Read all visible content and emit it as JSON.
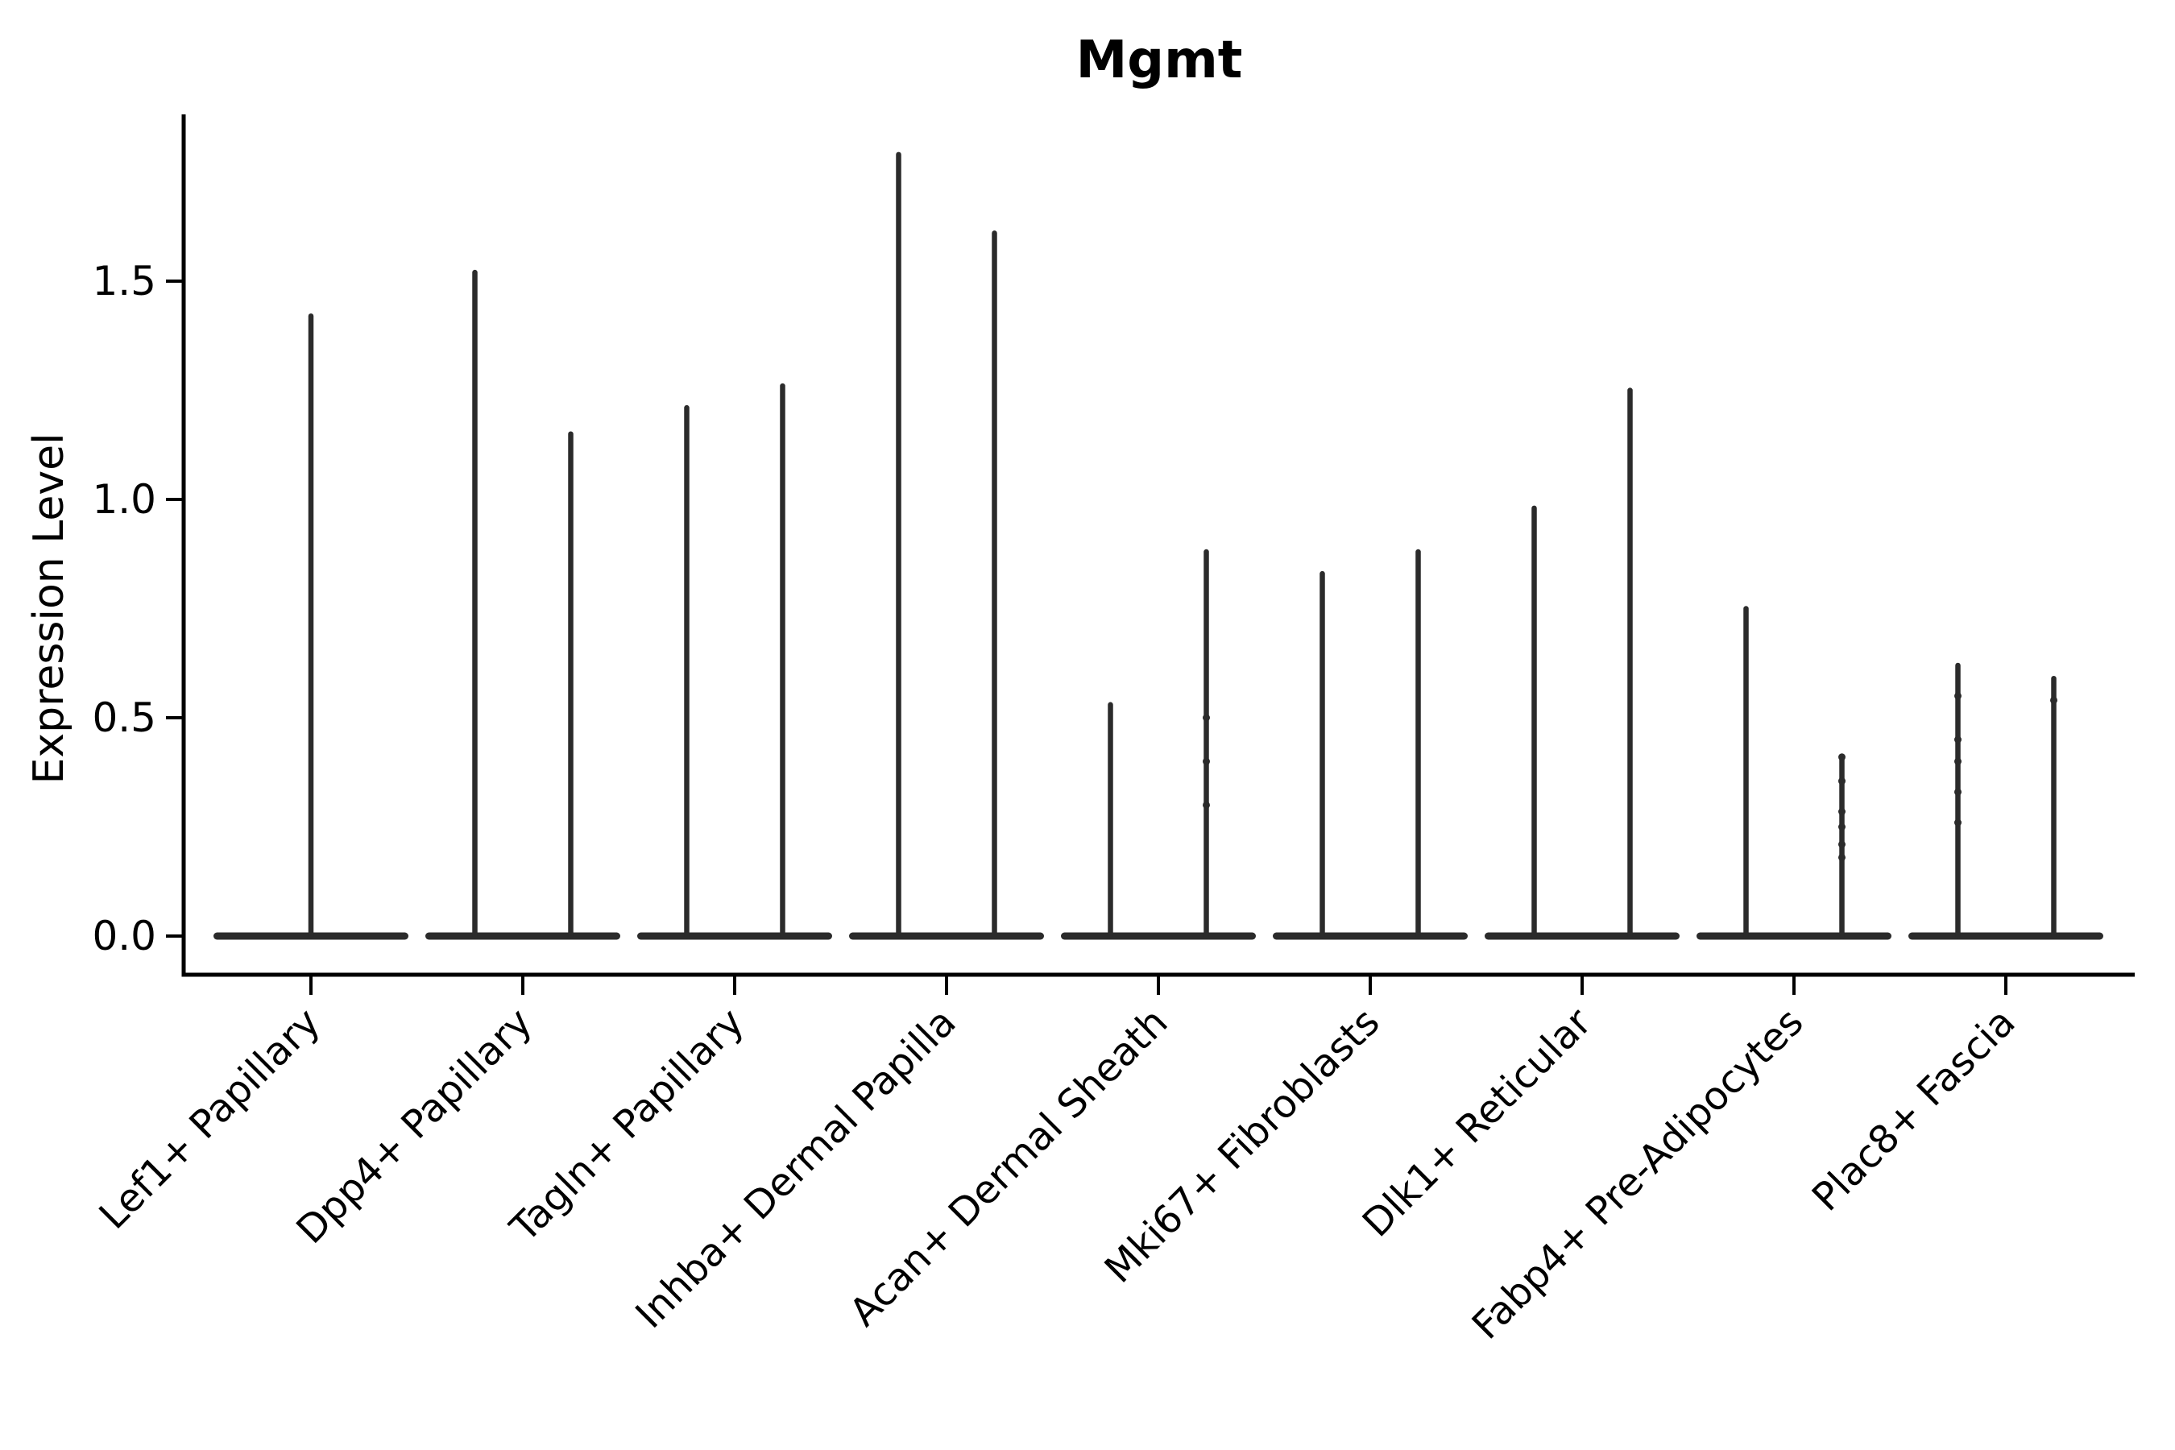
{
  "chart_data": {
    "type": "violin",
    "title": "Mgmt",
    "xlabel": "",
    "ylabel": "Expression Level",
    "ylim": [
      0,
      1.88
    ],
    "yticks": [
      0.0,
      0.5,
      1.0,
      1.5
    ],
    "ytick_labels": [
      "0.0",
      "0.5",
      "1.0",
      "1.5"
    ],
    "grid": false,
    "legend": "none",
    "categories": [
      "Lef1+ Papillary",
      "Dpp4+ Papillary",
      "Tagln+ Papillary",
      "Inhba+ Dermal Papilla",
      "Acan+ Dermal Sheath",
      "Mki67+ Fibroblasts",
      "Dlk1+ Reticular",
      "Fabp4+ Pre-Adipocytes",
      "Plac8+ Fascia"
    ],
    "violins": [
      {
        "category": "Lef1+ Papillary",
        "split": false,
        "max_values": [
          1.42
        ],
        "dots": [
          []
        ]
      },
      {
        "category": "Dpp4+ Papillary",
        "split": true,
        "max_values": [
          1.52,
          1.15
        ],
        "dots": [
          [],
          []
        ]
      },
      {
        "category": "Tagln+ Papillary",
        "split": true,
        "max_values": [
          1.21,
          1.26
        ],
        "dots": [
          [],
          []
        ]
      },
      {
        "category": "Inhba+ Dermal Papilla",
        "split": true,
        "max_values": [
          1.79,
          1.61
        ],
        "dots": [
          [],
          []
        ]
      },
      {
        "category": "Acan+ Dermal Sheath",
        "split": true,
        "max_values": [
          0.53,
          0.88
        ],
        "dots": [
          [],
          [
            0.5,
            0.4,
            0.3
          ]
        ]
      },
      {
        "category": "Mki67+ Fibroblasts",
        "split": true,
        "max_values": [
          0.83,
          0.88
        ],
        "dots": [
          [],
          []
        ]
      },
      {
        "category": "Dlk1+ Reticular",
        "split": true,
        "max_values": [
          0.98,
          1.25
        ],
        "dots": [
          [],
          []
        ]
      },
      {
        "category": "Fabp4+ Pre-Adipocytes",
        "split": true,
        "max_values": [
          0.75,
          0.41
        ],
        "dots": [
          [],
          [
            0.41,
            0.355,
            0.285,
            0.25,
            0.21,
            0.18
          ]
        ]
      },
      {
        "category": "Plac8+ Fascia",
        "split": true,
        "max_values": [
          0.62,
          0.59
        ],
        "dots": [
          [
            0.55,
            0.45,
            0.4,
            0.33,
            0.26
          ],
          [
            0.54
          ]
        ]
      }
    ],
    "colors": {
      "violin": "#2b2b2b",
      "axis": "#000000",
      "text": "#000000",
      "background": "#ffffff"
    }
  }
}
